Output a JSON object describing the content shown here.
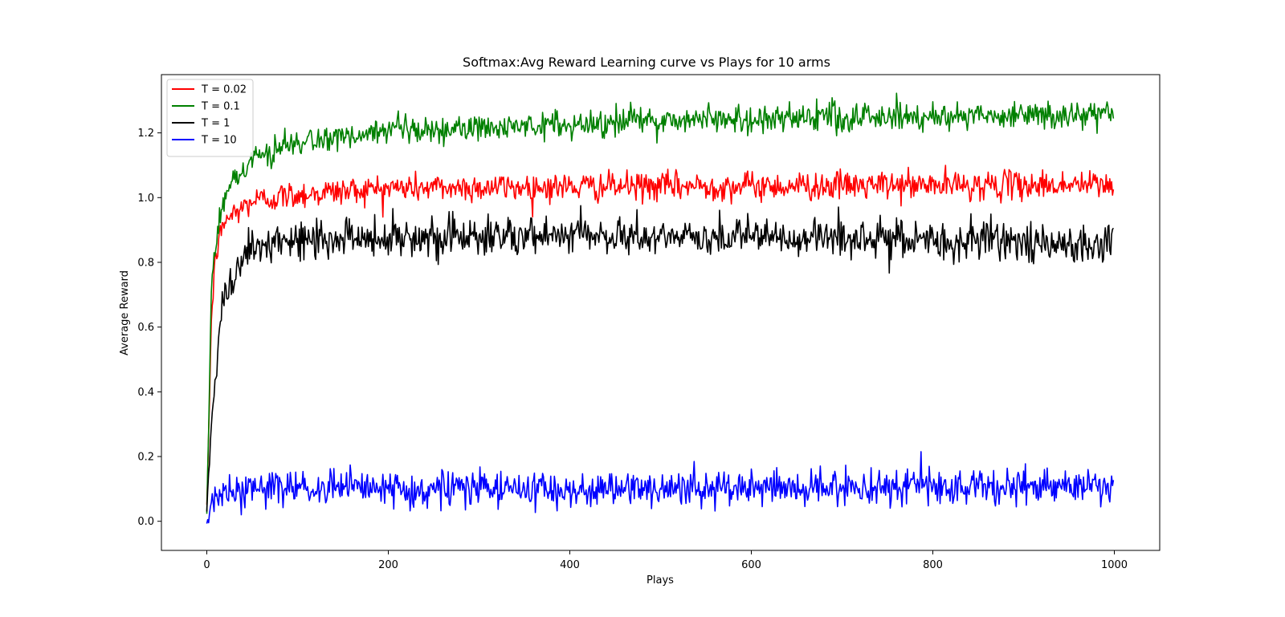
{
  "chart_data": {
    "type": "line",
    "title": "Softmax:Avg Reward Learning curve vs Plays for 10 arms",
    "xlabel": "Plays",
    "ylabel": "Average Reward",
    "xlim": [
      -50,
      1050
    ],
    "ylim": [
      -0.09,
      1.38
    ],
    "xticks": [
      0,
      200,
      400,
      600,
      800,
      1000
    ],
    "xtick_labels": [
      "0",
      "200",
      "400",
      "600",
      "800",
      "1000"
    ],
    "yticks": [
      0.0,
      0.2,
      0.4,
      0.6,
      0.8,
      1.0,
      1.2
    ],
    "ytick_labels": [
      "0.0",
      "0.2",
      "0.4",
      "0.6",
      "0.8",
      "1.0",
      "1.2"
    ],
    "grid": false,
    "legend_position": "top-left",
    "n_points": 1000,
    "series": [
      {
        "name": "T = 0.02",
        "color": "#ff0000",
        "start": 0.03,
        "plateau": 1.035,
        "rise_tau": 9,
        "noise": 0.022,
        "key_points": [
          [
            0,
            0.03
          ],
          [
            5,
            0.62
          ],
          [
            10,
            0.83
          ],
          [
            20,
            0.93
          ],
          [
            50,
            0.99
          ],
          [
            100,
            1.01
          ],
          [
            200,
            1.03
          ],
          [
            500,
            1.035
          ],
          [
            1000,
            1.04
          ]
        ]
      },
      {
        "name": "T = 0.1",
        "color": "#008000",
        "start": 0.03,
        "plateau": 1.26,
        "rise_tau": 60,
        "noise": 0.022,
        "key_points": [
          [
            0,
            0.03
          ],
          [
            5,
            0.7
          ],
          [
            10,
            0.88
          ],
          [
            20,
            1.02
          ],
          [
            50,
            1.12
          ],
          [
            100,
            1.17
          ],
          [
            200,
            1.2
          ],
          [
            500,
            1.24
          ],
          [
            1000,
            1.26
          ]
        ]
      },
      {
        "name": "T = 1",
        "color": "#000000",
        "start": 0.03,
        "plateau": 0.88,
        "rise_tau": 16,
        "noise": 0.03,
        "key_points": [
          [
            0,
            0.03
          ],
          [
            5,
            0.28
          ],
          [
            10,
            0.48
          ],
          [
            20,
            0.7
          ],
          [
            50,
            0.84
          ],
          [
            100,
            0.87
          ],
          [
            200,
            0.88
          ],
          [
            500,
            0.88
          ],
          [
            1000,
            0.86
          ]
        ]
      },
      {
        "name": "T = 10",
        "color": "#0000ff",
        "start": -0.02,
        "plateau": 0.1,
        "rise_tau": 3,
        "noise": 0.028,
        "key_points": [
          [
            0,
            -0.02
          ],
          [
            5,
            0.05
          ],
          [
            10,
            0.09
          ],
          [
            50,
            0.1
          ],
          [
            100,
            0.1
          ],
          [
            500,
            0.1
          ],
          [
            1000,
            0.11
          ]
        ]
      }
    ]
  }
}
